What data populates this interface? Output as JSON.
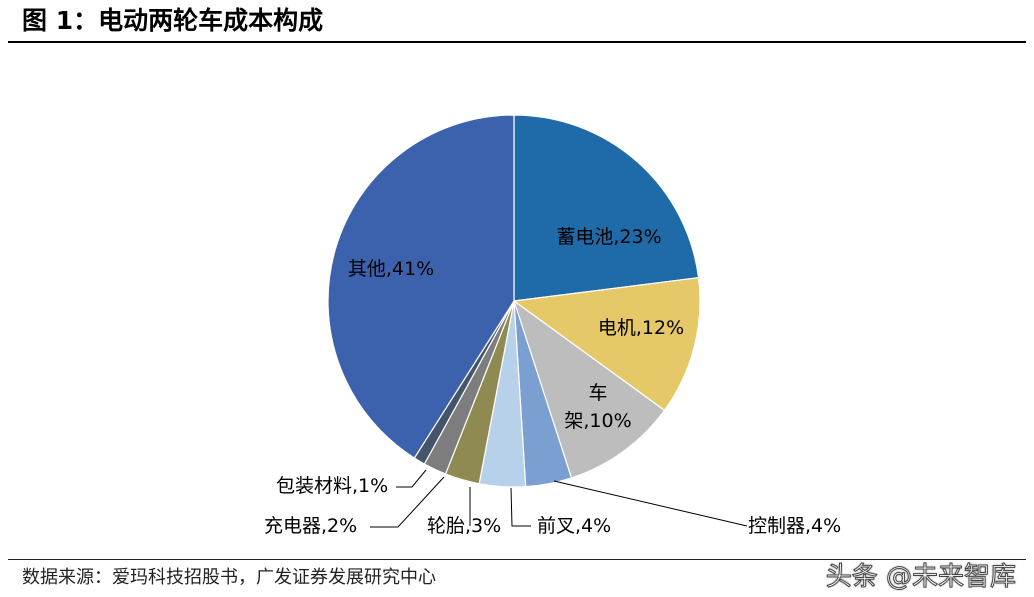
{
  "header": {
    "title": "图 1：电动两轮车成本构成"
  },
  "footer": {
    "source": "数据来源：爱玛科技招股书，广发证券发展研究中心"
  },
  "watermark": {
    "text": "头条 @未来智库"
  },
  "chart_data": {
    "type": "pie",
    "title": "",
    "slices": [
      {
        "label": "蓄电池,23%",
        "value": 23,
        "color": "#1f6aa8"
      },
      {
        "label": "电机,12%",
        "value": 12,
        "color": "#e5c867"
      },
      {
        "label": "车架,10%",
        "value": 10,
        "color": "#bdbdbd"
      },
      {
        "label": "控制器,4%",
        "value": 4,
        "color": "#7b9fd0"
      },
      {
        "label": "前叉,4%",
        "value": 4,
        "color": "#b8d1ea"
      },
      {
        "label": "轮胎,3%",
        "value": 3,
        "color": "#8f8a52"
      },
      {
        "label": "充电器,2%",
        "value": 2,
        "color": "#7d7d7d"
      },
      {
        "label": "包装材料,1%",
        "value": 1,
        "color": "#44546a"
      },
      {
        "label": "其他,41%",
        "value": 41,
        "color": "#3d62ad"
      }
    ]
  }
}
